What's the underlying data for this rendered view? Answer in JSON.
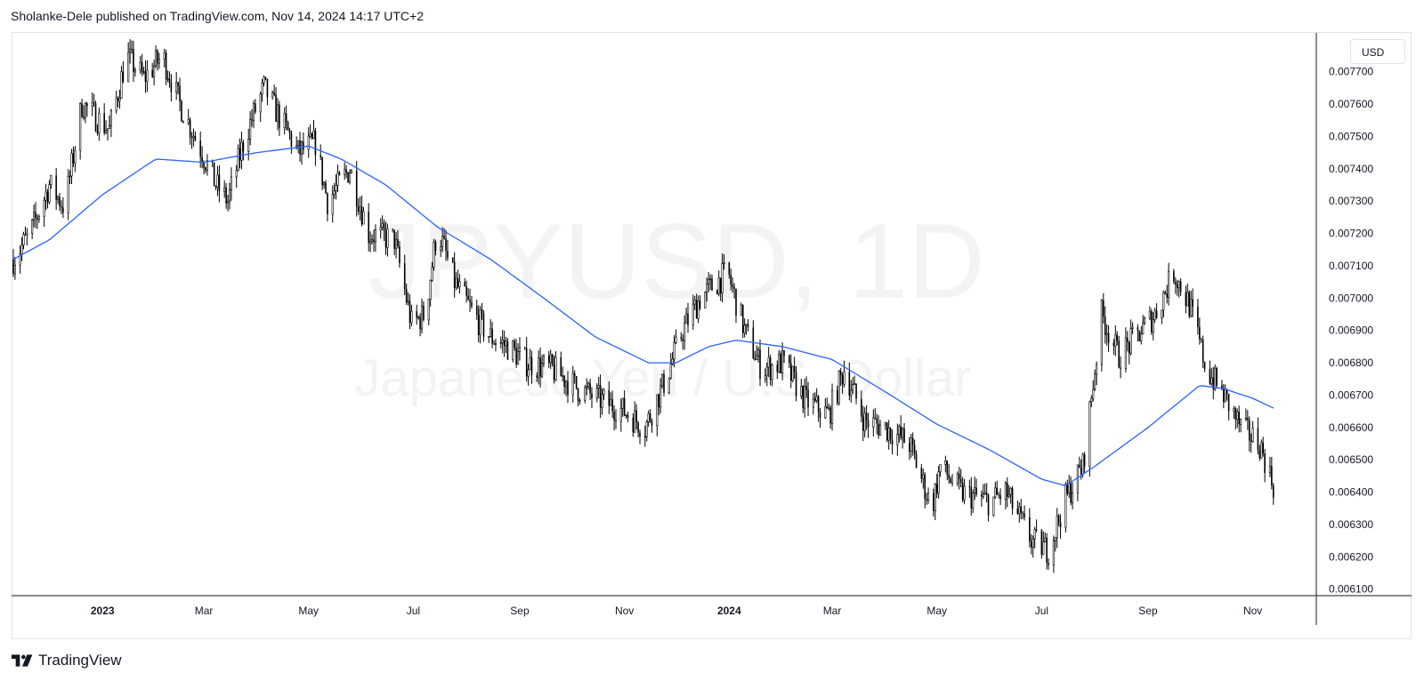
{
  "header": {
    "published": "Sholanke-Dele published on TradingView.com, Nov 14, 2024 14:17 UTC+2"
  },
  "watermark": {
    "symbol": "JPYUSD, 1D",
    "description": "Japanese Yen / U.S. Dollar"
  },
  "currency_label": "USD",
  "footer": {
    "brand": "TradingView",
    "logo_icon": "tradingview-logo-icon"
  },
  "colors": {
    "candle": "#000000",
    "moving_average": "#2962ff",
    "grid_axis": "#131722",
    "watermark": "#f3f3f5"
  },
  "chart_data": {
    "type": "candlestick",
    "interval": "1D",
    "series": [
      {
        "name": "JPYUSD",
        "kind": "price"
      },
      {
        "name": "",
        "kind": "moving_average"
      }
    ],
    "x_ticks": [
      "2023",
      "Mar",
      "May",
      "Jul",
      "Sep",
      "Nov",
      "2024",
      "Mar",
      "May",
      "Jul",
      "Sep",
      "Nov"
    ],
    "x_ticks_bold": [
      "2023",
      "2024"
    ],
    "y_ticks": [
      "0.007700",
      "0.007600",
      "0.007500",
      "0.007400",
      "0.007300",
      "0.007200",
      "0.007100",
      "0.007000",
      "0.006900",
      "0.006800",
      "0.006700",
      "0.006600",
      "0.006500",
      "0.006400",
      "0.006300",
      "0.006200",
      "0.006100"
    ],
    "ylim": [
      0.00608,
      0.00782
    ],
    "xlim": [
      "2022-11-09",
      "2024-12-08"
    ],
    "price_anchors": [
      [
        "2022-11-10",
        0.00712
      ],
      [
        "2022-11-20",
        0.0072
      ],
      [
        "2022-12-01",
        0.00735
      ],
      [
        "2022-12-10",
        0.00728
      ],
      [
        "2022-12-20",
        0.0076
      ],
      [
        "2023-01-05",
        0.00752
      ],
      [
        "2023-01-15",
        0.00775
      ],
      [
        "2023-01-25",
        0.00768
      ],
      [
        "2023-02-05",
        0.00775
      ],
      [
        "2023-02-15",
        0.0076
      ],
      [
        "2023-02-28",
        0.00745
      ],
      [
        "2023-03-08",
        0.00735
      ],
      [
        "2023-03-15",
        0.0073
      ],
      [
        "2023-03-25",
        0.0075
      ],
      [
        "2023-04-05",
        0.00765
      ],
      [
        "2023-04-15",
        0.00755
      ],
      [
        "2023-04-25",
        0.00745
      ],
      [
        "2023-05-05",
        0.00748
      ],
      [
        "2023-05-12",
        0.0073
      ],
      [
        "2023-05-25",
        0.0074
      ],
      [
        "2023-06-05",
        0.0072
      ],
      [
        "2023-06-20",
        0.00718
      ],
      [
        "2023-06-30",
        0.00692
      ],
      [
        "2023-07-08",
        0.00695
      ],
      [
        "2023-07-15",
        0.00722
      ],
      [
        "2023-07-25",
        0.00705
      ],
      [
        "2023-08-05",
        0.00695
      ],
      [
        "2023-08-15",
        0.00688
      ],
      [
        "2023-08-25",
        0.00685
      ],
      [
        "2023-09-05",
        0.0068
      ],
      [
        "2023-09-20",
        0.00678
      ],
      [
        "2023-10-05",
        0.00672
      ],
      [
        "2023-10-20",
        0.00668
      ],
      [
        "2023-11-01",
        0.00665
      ],
      [
        "2023-11-13",
        0.0066
      ],
      [
        "2023-11-25",
        0.00675
      ],
      [
        "2023-12-05",
        0.0069
      ],
      [
        "2023-12-15",
        0.007
      ],
      [
        "2023-12-25",
        0.00705
      ],
      [
        "2023-12-31",
        0.00708
      ],
      [
        "2024-01-10",
        0.0069
      ],
      [
        "2024-01-20",
        0.00678
      ],
      [
        "2024-02-01",
        0.0068
      ],
      [
        "2024-02-15",
        0.00668
      ],
      [
        "2024-02-28",
        0.00664
      ],
      [
        "2024-03-08",
        0.00678
      ],
      [
        "2024-03-20",
        0.00662
      ],
      [
        "2024-04-01",
        0.0066
      ],
      [
        "2024-04-15",
        0.00655
      ],
      [
        "2024-04-28",
        0.00635
      ],
      [
        "2024-05-03",
        0.00648
      ],
      [
        "2024-05-15",
        0.0064
      ],
      [
        "2024-06-01",
        0.00637
      ],
      [
        "2024-06-10",
        0.0064
      ],
      [
        "2024-06-25",
        0.00625
      ],
      [
        "2024-07-05",
        0.00622
      ],
      [
        "2024-07-15",
        0.00638
      ],
      [
        "2024-07-25",
        0.00648
      ],
      [
        "2024-08-05",
        0.00695
      ],
      [
        "2024-08-15",
        0.00682
      ],
      [
        "2024-08-25",
        0.00688
      ],
      [
        "2024-09-05",
        0.00695
      ],
      [
        "2024-09-16",
        0.00708
      ],
      [
        "2024-09-25",
        0.00698
      ],
      [
        "2024-10-05",
        0.00678
      ],
      [
        "2024-10-15",
        0.0067
      ],
      [
        "2024-10-25",
        0.0066
      ],
      [
        "2024-11-05",
        0.00655
      ],
      [
        "2024-11-13",
        0.00642
      ]
    ],
    "moving_average_points": [
      [
        "2022-11-10",
        0.00712
      ],
      [
        "2022-12-01",
        0.00718
      ],
      [
        "2023-01-01",
        0.00732
      ],
      [
        "2023-02-01",
        0.00743
      ],
      [
        "2023-03-01",
        0.00742
      ],
      [
        "2023-04-01",
        0.00745
      ],
      [
        "2023-05-01",
        0.00747
      ],
      [
        "2023-05-20",
        0.00743
      ],
      [
        "2023-06-15",
        0.00735
      ],
      [
        "2023-07-15",
        0.00722
      ],
      [
        "2023-08-15",
        0.00712
      ],
      [
        "2023-09-15",
        0.007
      ],
      [
        "2023-10-15",
        0.00688
      ],
      [
        "2023-11-15",
        0.0068
      ],
      [
        "2023-12-01",
        0.0068
      ],
      [
        "2023-12-20",
        0.00685
      ],
      [
        "2024-01-05",
        0.00687
      ],
      [
        "2024-02-01",
        0.00685
      ],
      [
        "2024-03-01",
        0.00681
      ],
      [
        "2024-04-01",
        0.00671
      ],
      [
        "2024-05-01",
        0.00661
      ],
      [
        "2024-06-01",
        0.00653
      ],
      [
        "2024-07-01",
        0.00644
      ],
      [
        "2024-07-15",
        0.00642
      ],
      [
        "2024-08-01",
        0.00648
      ],
      [
        "2024-09-01",
        0.0066
      ],
      [
        "2024-10-01",
        0.00673
      ],
      [
        "2024-10-15",
        0.00672
      ],
      [
        "2024-11-01",
        0.00669
      ],
      [
        "2024-11-13",
        0.00666
      ]
    ]
  }
}
